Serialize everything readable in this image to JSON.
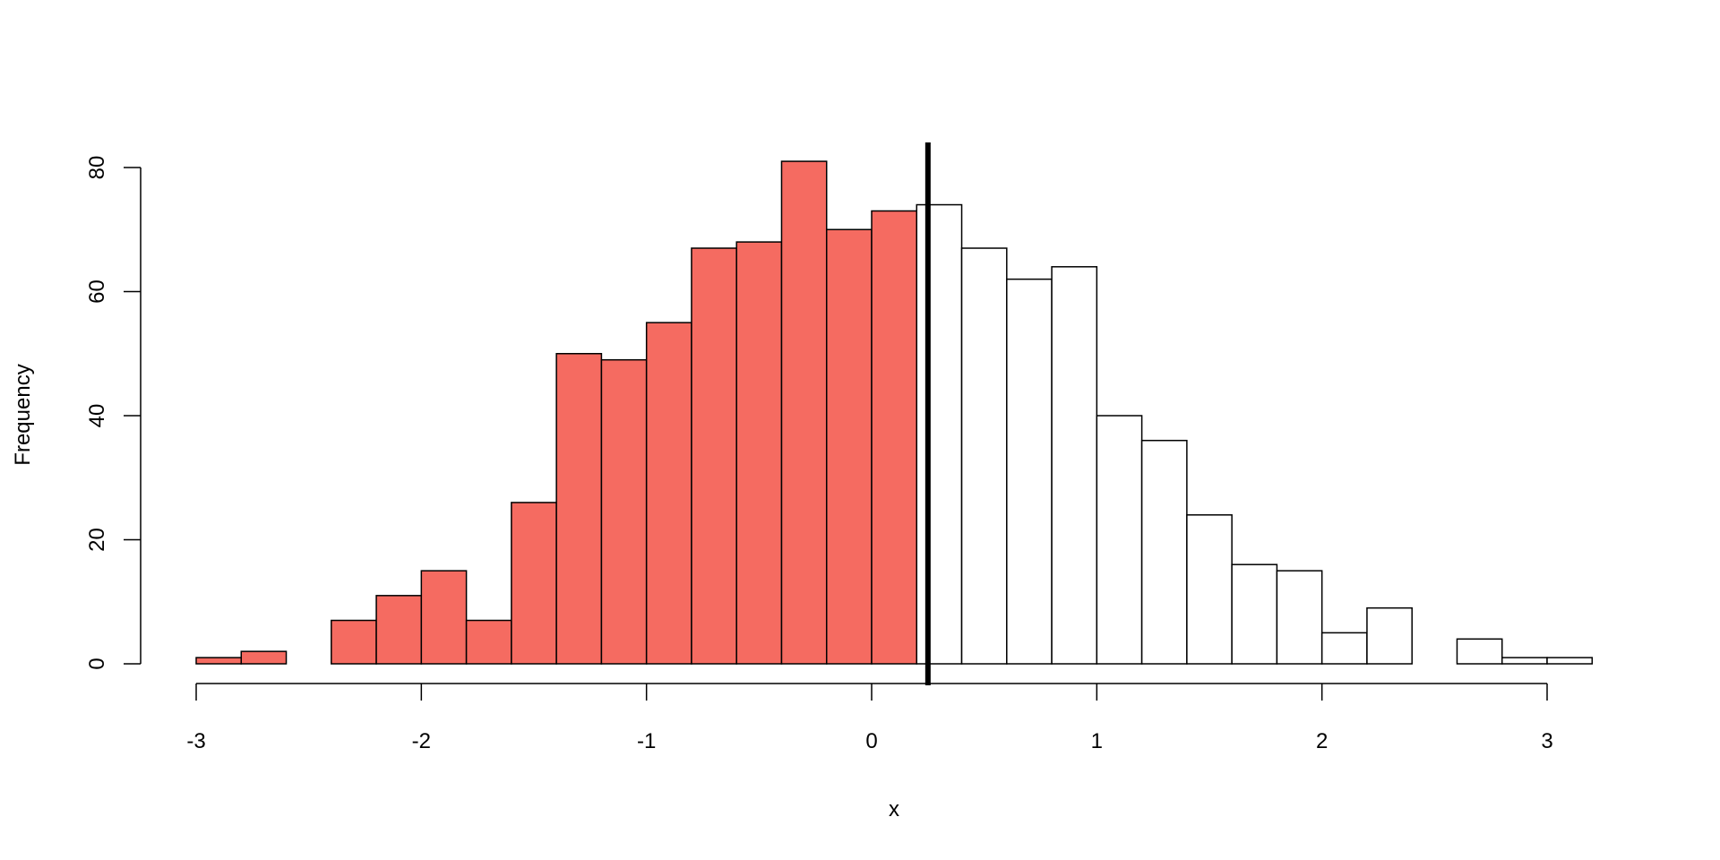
{
  "chart_data": {
    "type": "bar",
    "subtype": "histogram",
    "title": "",
    "xlabel": "x",
    "ylabel": "Frequency",
    "bin_width": 0.2,
    "bin_start": -3.0,
    "values": [
      1,
      2,
      0,
      7,
      11,
      15,
      7,
      26,
      50,
      49,
      55,
      67,
      68,
      81,
      70,
      73,
      74,
      67,
      62,
      64,
      40,
      36,
      24,
      16,
      15,
      5,
      9,
      0,
      4,
      1,
      1
    ],
    "xlim": [
      -3,
      3.2
    ],
    "ylim": [
      0,
      85
    ],
    "xticks": [
      -3,
      -2,
      -1,
      0,
      1,
      2,
      3
    ],
    "xtick_labels": [
      "-3",
      "-2",
      "-1",
      "0",
      "1",
      "2",
      "3"
    ],
    "yticks": [
      0,
      20,
      40,
      60,
      80
    ],
    "ytick_labels": [
      "0",
      "20",
      "40",
      "60",
      "80"
    ],
    "vline": 0.25,
    "highlight_below": 0.2,
    "colors": {
      "highlight": "#F56B61",
      "default": "#FFFFFF",
      "stroke": "#000000"
    },
    "grid": false,
    "legend": "none"
  }
}
